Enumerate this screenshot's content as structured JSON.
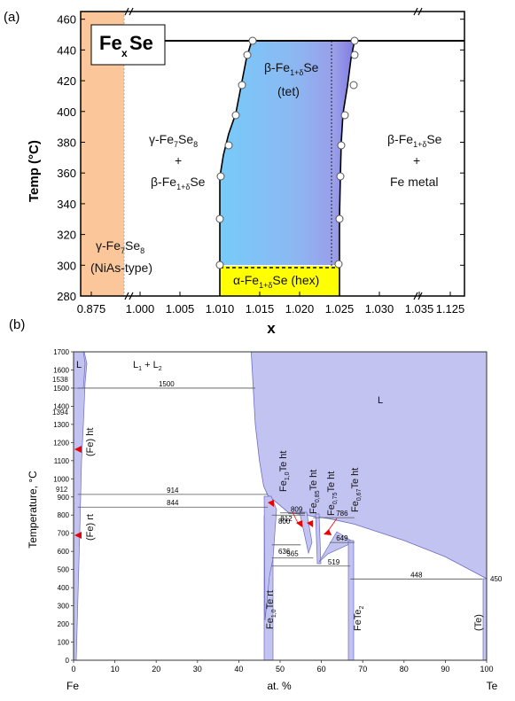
{
  "chart_data": [
    {
      "panel": "(a)",
      "type": "phase-diagram",
      "title": "",
      "xlabel": "x",
      "ylabel": "Temp (°C)",
      "x_tick_labels": [
        "0.875",
        "1.000",
        "1.005",
        "1.010",
        "1.015",
        "1.020",
        "1.025",
        "1.030",
        "1.035",
        "1.125"
      ],
      "y_ticks": [
        280,
        300,
        320,
        340,
        360,
        380,
        400,
        420,
        440,
        460
      ],
      "ylim": [
        280,
        465
      ],
      "x_axis_breaks": "broken after 0.875 and after 1.030 (//)",
      "legend": {
        "text": [
          "Fe",
          "x",
          "Se"
        ]
      },
      "region_labels": {
        "gamma_fe7se8_1": "γ-Fe",
        "gamma_fe7se8_1_sub7": "7",
        "gamma_fe7se8_1_se": "Se",
        "gamma_fe7se8_1_sub8": "8",
        "plus": "+",
        "beta_fe": "β-Fe",
        "beta_sub": "1+δ",
        "beta_se": "Se",
        "beta_tet_1": "β-Fe",
        "tet": "(tet)",
        "beta_metal_1": "β-Fe",
        "fe_metal": "Fe metal",
        "nias_gamma": "γ-Fe",
        "nias_type": "(NiAs-type)",
        "alpha_1": "α-Fe",
        "alpha_sub": "1+δ",
        "alpha_2": "Se (hex)"
      },
      "boundary_points": {
        "left_boundary": [
          [
            1.0111,
            300
          ],
          [
            1.0111,
            330
          ],
          [
            1.0111,
            360
          ],
          [
            1.0117,
            380
          ],
          [
            1.0124,
            400
          ],
          [
            1.0131,
            420
          ],
          [
            1.0141,
            440
          ],
          [
            1.0148,
            450
          ]
        ],
        "right_boundary": [
          [
            1.0262,
            300
          ],
          [
            1.0262,
            330
          ],
          [
            1.0262,
            360
          ],
          [
            1.0264,
            380
          ],
          [
            1.0268,
            400
          ],
          [
            1.0275,
            420
          ],
          [
            1.0278,
            440
          ],
          [
            1.0278,
            450
          ]
        ]
      },
      "horizontal_line_T": 450,
      "alpha_region_T": [
        280,
        298
      ],
      "colors": {
        "nias_band": "#fbc79a",
        "beta_region_start": "#7dcffa",
        "beta_region_end": "#8f8ee8",
        "alpha_region": "#ffff00"
      }
    },
    {
      "panel": "(b)",
      "type": "phase-diagram",
      "title": "",
      "xlabel": "at. %",
      "ylabel": "Temperature, °C",
      "x_left_label": "Fe",
      "x_right_label": "Te",
      "x_ticks": [
        0,
        10,
        20,
        30,
        40,
        50,
        60,
        70,
        80,
        90,
        100
      ],
      "y_ticks": [
        0,
        100,
        200,
        300,
        400,
        500,
        600,
        700,
        800,
        900,
        1000,
        1100,
        1200,
        1300,
        1400,
        1500,
        1600,
        1700
      ],
      "xlim": [
        0,
        100
      ],
      "ylim": [
        0,
        1700
      ],
      "special_temps_left": [
        "1538",
        "1394",
        "912"
      ],
      "isotherms": [
        {
          "label": "1500",
          "T": 1500,
          "x": [
            1,
            44
          ]
        },
        {
          "label": "914",
          "T": 914,
          "x": [
            1,
            47
          ]
        },
        {
          "label": "844",
          "T": 844,
          "x": [
            1,
            47
          ]
        },
        {
          "label": "809",
          "T": 809,
          "x": [
            52,
            56
          ]
        },
        {
          "label": "812",
          "T": 812,
          "x": [
            50,
            56
          ]
        },
        {
          "label": "800",
          "T": 800,
          "x": [
            48,
            56
          ]
        },
        {
          "label": "786",
          "T": 786,
          "x": [
            58,
            68
          ]
        },
        {
          "label": "636",
          "T": 636,
          "x": [
            48,
            55
          ]
        },
        {
          "label": "649",
          "T": 649,
          "x": [
            62,
            68
          ]
        },
        {
          "label": "565",
          "T": 565,
          "x": [
            48,
            58
          ]
        },
        {
          "label": "519",
          "T": 519,
          "x": [
            48,
            67
          ]
        },
        {
          "label": "448",
          "T": 448,
          "x": [
            67,
            99
          ]
        },
        {
          "label": "450",
          "T": 450,
          "x": [
            100,
            100
          ]
        }
      ],
      "liquidus_curve": [
        [
          43,
          1700
        ],
        [
          43.5,
          1500
        ],
        [
          44,
          1300
        ],
        [
          45,
          1100
        ],
        [
          46,
          960
        ],
        [
          47,
          910
        ],
        [
          52,
          815
        ],
        [
          56,
          800
        ],
        [
          62,
          780
        ],
        [
          68,
          750
        ],
        [
          80,
          660
        ],
        [
          90,
          570
        ],
        [
          100,
          450
        ]
      ],
      "labels": {
        "L": "L",
        "L1": "L",
        "L1_sub": "1",
        "plus": "+",
        "L2": "L",
        "L2_sub": "2",
        "fe_ht": "(Fe) ht",
        "fe_rt": "(Fe) rt",
        "fe1te_ht_fe": "Fe",
        "fe1te_ht_sub": "1,0",
        "fe1te_ht_rest": "Te ht",
        "fe085_fe": "Fe",
        "fe085_sub": "0,85",
        "fe085_rest": "Te ht",
        "fe075_fe": "Fe",
        "fe075_sub": "0,75",
        "fe075_rest": "Te ht",
        "fe067_fe": "Fe",
        "fe067_sub": "0,67",
        "fe067_rest": "Te ht",
        "fe1te_rt_fe": "Fe",
        "fe1te_rt_sub": "1,0",
        "fe1te_rt_rest": "Te rt",
        "fete2_fe": "FeTe",
        "fete2_sub": "2",
        "te": "(Te)"
      },
      "colors": {
        "phase_fill": "#c3c3f2",
        "phase_edge": "#6c6cc0",
        "arrow": "#ee0000"
      }
    }
  ]
}
